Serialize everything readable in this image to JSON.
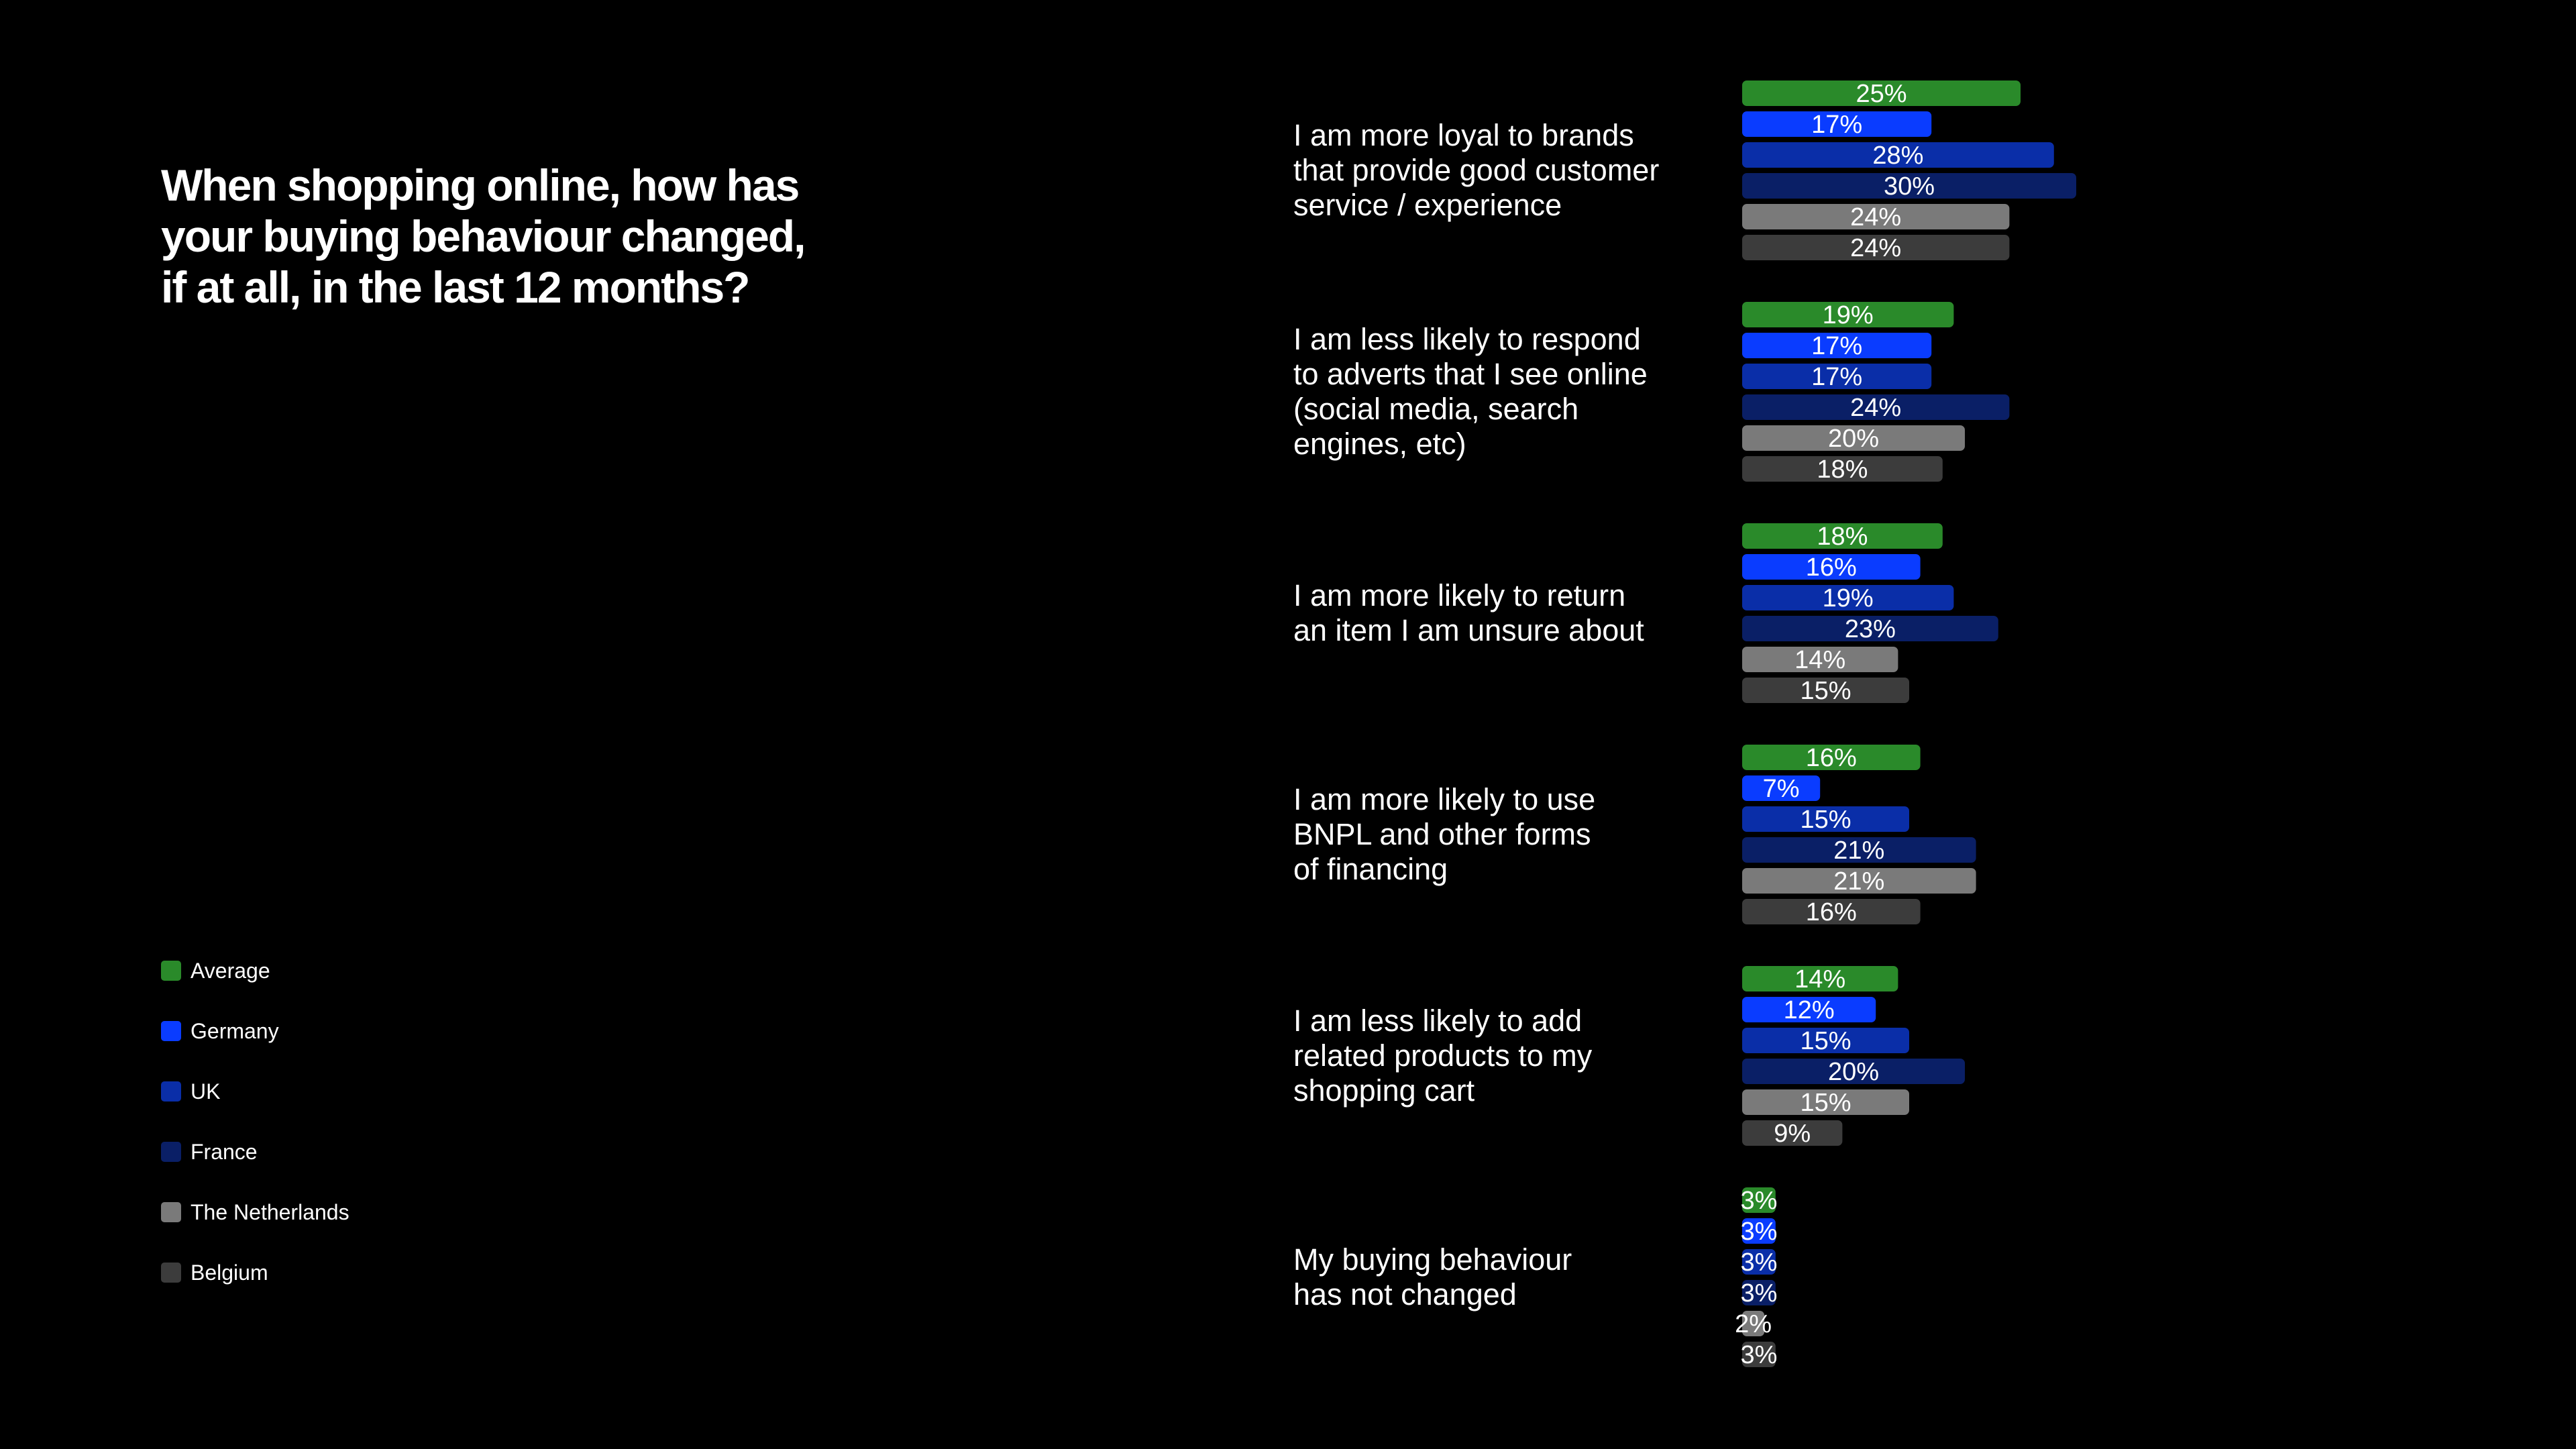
{
  "title_lines": [
    "When shopping online, how has",
    "your buying behaviour changed,",
    "if at all, in the last 12 months?"
  ],
  "legend": [
    {
      "label": "Average",
      "color": "#2a8a2a"
    },
    {
      "label": "Germany",
      "color": "#0a3cff"
    },
    {
      "label": "UK",
      "color": "#0a2ea8"
    },
    {
      "label": "France",
      "color": "#0a1f66"
    },
    {
      "label": "The Netherlands",
      "color": "#7a7a7a"
    },
    {
      "label": "Belgium",
      "color": "#3c3c3c"
    }
  ],
  "category_lines": [
    [
      "I am more loyal to brands",
      "that provide good customer",
      "service / experience"
    ],
    [
      "I am less likely to respond",
      "to adverts that I see online",
      "(social media, search",
      "engines, etc)"
    ],
    [
      "I am more likely to return",
      "an item I am unsure about"
    ],
    [
      "I am more likely to use",
      "BNPL and other forms",
      "of financing"
    ],
    [
      "I am less likely to add",
      "related products to my",
      "shopping cart"
    ],
    [
      "My buying behaviour",
      "has not changed"
    ]
  ],
  "chart_data": {
    "type": "bar",
    "orientation": "horizontal",
    "categories": [
      "I am more loyal to brands that provide good customer service / experience",
      "I am less likely to respond to adverts that I see online (social media, search engines, etc)",
      "I am more likely to return an item I am unsure about",
      "I am more likely to use BNPL and other forms of financing",
      "I am less likely to add related products to my shopping cart",
      "My buying behaviour has not changed"
    ],
    "series": [
      {
        "name": "Average",
        "color": "#2a8a2a",
        "values": [
          25,
          19,
          18,
          16,
          14,
          3
        ]
      },
      {
        "name": "Germany",
        "color": "#0a3cff",
        "values": [
          17,
          17,
          16,
          7,
          12,
          3
        ]
      },
      {
        "name": "UK",
        "color": "#0a2ea8",
        "values": [
          28,
          17,
          19,
          15,
          15,
          3
        ]
      },
      {
        "name": "France",
        "color": "#0a1f66",
        "values": [
          30,
          24,
          23,
          21,
          20,
          3
        ]
      },
      {
        "name": "The Netherlands",
        "color": "#7a7a7a",
        "values": [
          24,
          20,
          14,
          21,
          15,
          2
        ]
      },
      {
        "name": "Belgium",
        "color": "#3c3c3c",
        "values": [
          24,
          18,
          15,
          16,
          9,
          3
        ]
      }
    ],
    "value_suffix": "%",
    "xlim": [
      0,
      30
    ],
    "legend_position": "left",
    "grid": false
  }
}
